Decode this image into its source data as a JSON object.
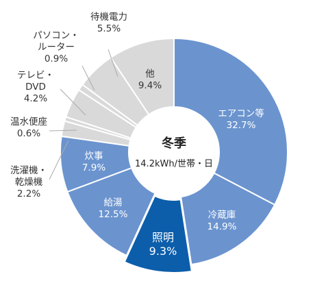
{
  "chart_data": {
    "type": "pie",
    "style": "donut",
    "center": {
      "title": "冬季",
      "subtitle": "14.2kWh/世帯・日"
    },
    "colors": {
      "blue": "#6b94cf",
      "gray": "#d9d9d9",
      "highlight": "#0c5eab"
    },
    "slices": [
      {
        "name": "エアコン等",
        "value": 32.7,
        "value_label": "32.7%",
        "color": "#6b94cf"
      },
      {
        "name": "冷蔵庫",
        "value": 14.9,
        "value_label": "14.9%",
        "color": "#6b94cf"
      },
      {
        "name": "照明",
        "value": 9.3,
        "value_label": "9.3%",
        "color": "#0c5eab",
        "highlight": true
      },
      {
        "name": "給湯",
        "value": 12.5,
        "value_label": "12.5%",
        "color": "#6b94cf"
      },
      {
        "name": "炊事",
        "value": 7.9,
        "value_label": "7.9%",
        "color": "#6b94cf"
      },
      {
        "name": "洗濯機・乾燥機",
        "name_lines": [
          "洗濯機・",
          "乾燥機"
        ],
        "value": 2.2,
        "value_label": "2.2%",
        "color": "#d9d9d9"
      },
      {
        "name": "温水便座",
        "value": 0.6,
        "value_label": "0.6%",
        "color": "#d9d9d9"
      },
      {
        "name": "テレビ・DVD",
        "name_lines": [
          "テレビ・",
          "DVD"
        ],
        "value": 4.2,
        "value_label": "4.2%",
        "color": "#d9d9d9"
      },
      {
        "name": "パソコン・ルーター",
        "name_lines": [
          "パソコン・",
          "ルーター"
        ],
        "value": 0.9,
        "value_label": "0.9%",
        "color": "#d9d9d9"
      },
      {
        "name": "待機電力",
        "value": 5.5,
        "value_label": "5.5%",
        "color": "#d9d9d9"
      },
      {
        "name": "他",
        "value": 9.4,
        "value_label": "9.4%",
        "color": "#d9d9d9"
      }
    ]
  }
}
